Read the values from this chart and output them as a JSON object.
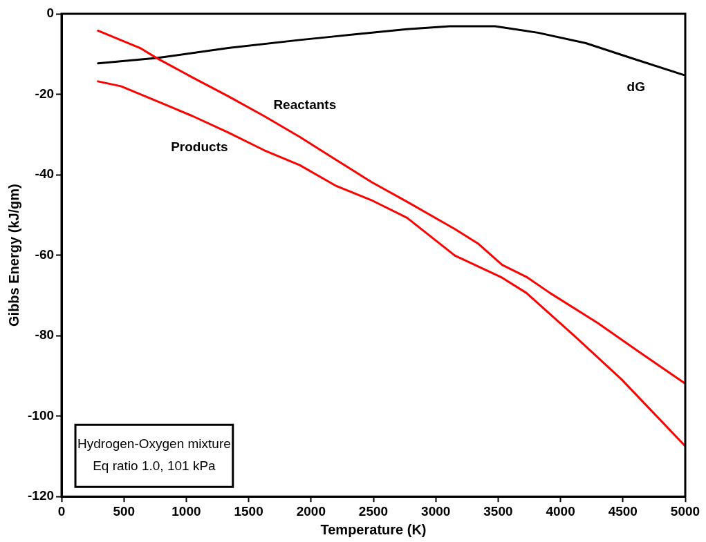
{
  "chart_data": {
    "type": "line",
    "xlabel": "Temperature (K)",
    "ylabel": "Gibbs Energy (kJ/gm)",
    "xlim": [
      0,
      5000
    ],
    "xticks": [
      0,
      500,
      1000,
      1500,
      2000,
      2500,
      3000,
      3500,
      4000,
      4500,
      5000
    ],
    "ylim": [
      -120,
      0
    ],
    "yticks": [
      -120,
      -100,
      -80,
      -60,
      -40,
      -20,
      0
    ],
    "grid": false,
    "legend": false,
    "marker": "none",
    "line_style": "solid",
    "series": [
      {
        "name": "Reactants",
        "color": "#ff0000",
        "x": [
          292,
          630,
          763,
          1049,
          1336,
          1623,
          1909,
          2196,
          2483,
          2769,
          3153,
          3343,
          3532,
          3727,
          3916,
          4300,
          4679,
          4995
        ],
        "values": [
          -4.2,
          -8.5,
          -11,
          -15.8,
          -20.5,
          -25.4,
          -30.6,
          -36.2,
          -41.8,
          -46.7,
          -53.5,
          -57.2,
          -62.4,
          -65.4,
          -69.4,
          -76.9,
          -85.1,
          -91.8
        ]
      },
      {
        "name": "Products",
        "color": "#ff0000",
        "x": [
          292,
          476,
          763,
          1049,
          1336,
          1623,
          1909,
          2196,
          2483,
          2769,
          3153,
          3532,
          3727,
          4106,
          4490,
          4995
        ],
        "values": [
          -16.8,
          -18,
          -21.7,
          -25.4,
          -29.5,
          -33.9,
          -37.6,
          -42.7,
          -46.3,
          -50.7,
          -60.1,
          -65.6,
          -69.4,
          -79.9,
          -90.9,
          -107.3
        ]
      },
      {
        "name": "dG",
        "color": "#000000",
        "x": [
          292,
          763,
          1336,
          1909,
          2196,
          2769,
          3113,
          3475,
          3819,
          4203,
          4587,
          4989
        ],
        "values": [
          -12.3,
          -11,
          -8.5,
          -6.5,
          -5.6,
          -3.8,
          -3.1,
          -3.1,
          -4.7,
          -7.3,
          -11.2,
          -15.2
        ]
      }
    ],
    "annotations": [
      "Hydrogen-Oxygen mixture\nEq ratio 1.0, 101 kPa"
    ]
  }
}
